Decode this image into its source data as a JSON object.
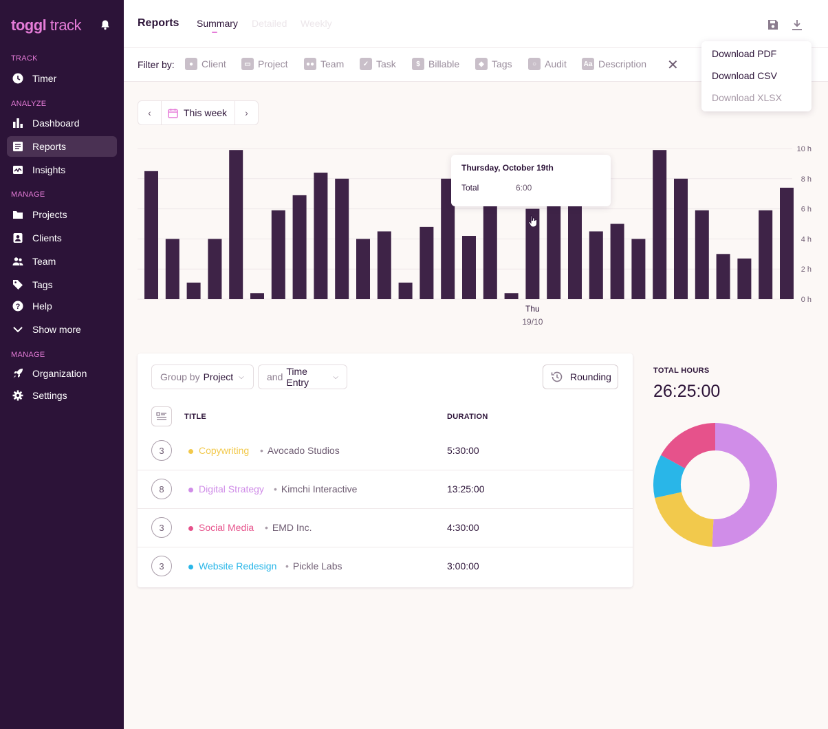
{
  "brand": {
    "logo_main": "toggl",
    "logo_sub": " track"
  },
  "sidebar": {
    "sections": [
      {
        "label": "TRACK"
      },
      {
        "label": "ANALYZE"
      },
      {
        "label": "MANAGE"
      },
      {
        "label": "MANAGE"
      }
    ],
    "items": [
      {
        "label": "Timer",
        "icon": "clock-icon"
      },
      {
        "label": "Dashboard",
        "icon": "bar-chart-icon"
      },
      {
        "label": "Reports",
        "icon": "report-icon",
        "active": true
      },
      {
        "label": "Insights",
        "icon": "insights-icon"
      },
      {
        "label": "Projects",
        "icon": "folder-icon"
      },
      {
        "label": "Clients",
        "icon": "client-icon"
      },
      {
        "label": "Team",
        "icon": "team-icon"
      },
      {
        "label": "Tags",
        "icon": "tag-icon"
      },
      {
        "label": "Help",
        "icon": "help-icon"
      },
      {
        "label": "Show more",
        "icon": "chevron-down-icon"
      },
      {
        "label": "Organization",
        "icon": "rocket-icon"
      },
      {
        "label": "Settings",
        "icon": "gear-icon"
      }
    ]
  },
  "header": {
    "title": "Reports",
    "tabs": [
      {
        "label": "Summary",
        "active": true
      },
      {
        "label": "Detailed"
      },
      {
        "label": "Weekly"
      }
    ]
  },
  "filters": {
    "label": "Filter by:",
    "items": [
      {
        "label": "Client",
        "icon": "client-icon"
      },
      {
        "label": "Project",
        "icon": "folder-icon"
      },
      {
        "label": "Team",
        "icon": "team-icon"
      },
      {
        "label": "Task",
        "icon": "check-icon"
      },
      {
        "label": "Billable",
        "icon": "dollar-icon"
      },
      {
        "label": "Tags",
        "icon": "tag-icon"
      },
      {
        "label": "Audit",
        "icon": "search-icon"
      },
      {
        "label": "Description",
        "icon": "text-icon"
      }
    ]
  },
  "download_menu": {
    "items": [
      {
        "label": "Download PDF",
        "disabled": false
      },
      {
        "label": "Download CSV",
        "disabled": false
      },
      {
        "label": "Download XLSX",
        "disabled": true
      }
    ]
  },
  "date_range": {
    "label": "This week"
  },
  "tooltip": {
    "title": "Thursday, October 19th",
    "label": "Total",
    "value": "6:00"
  },
  "chart_data": {
    "type": "bar",
    "y_ticks": [
      "0 h",
      "2 h",
      "4 h",
      "6 h",
      "8 h",
      "10 h"
    ],
    "ylim": [
      0,
      10
    ],
    "values": [
      8.5,
      4,
      1.1,
      4,
      9.9,
      0.4,
      5.9,
      6.9,
      8.4,
      8,
      4,
      4.5,
      1.1,
      4.8,
      8,
      4.2,
      7.8,
      0.4,
      6,
      7.5,
      7.5,
      4.5,
      5,
      4,
      9.9,
      8,
      5.9,
      3,
      2.7,
      5.9,
      7.4
    ],
    "highlighted_label": "Thu",
    "highlighted_sublabel": "19/10",
    "bar_color": "#3e2347"
  },
  "controls": {
    "group_by_prefix": "Group by",
    "group_by_value": "Project",
    "sub_prefix": "and",
    "sub_value": "Time Entry",
    "rounding": "Rounding"
  },
  "table": {
    "headers": {
      "title": "TITLE",
      "duration": "DURATION"
    },
    "rows": [
      {
        "count": "3",
        "project": "Copywriting",
        "client": "Avocado Studios",
        "duration": "5:30:00",
        "color": "#f2c94c"
      },
      {
        "count": "8",
        "project": "Digital Strategy",
        "client": "Kimchi Interactive",
        "duration": "13:25:00",
        "color": "#d08de8"
      },
      {
        "count": "3",
        "project": "Social Media",
        "client": "EMD Inc.",
        "duration": "4:30:00",
        "color": "#e6528b"
      },
      {
        "count": "3",
        "project": "Website Redesign",
        "client": "Pickle Labs",
        "duration": "3:00:00",
        "color": "#29b6e8"
      }
    ]
  },
  "totals": {
    "label": "TOTAL HOURS",
    "value": "26:25:00",
    "donut": [
      {
        "name": "Digital Strategy",
        "value": 13.42,
        "color": "#d08de8"
      },
      {
        "name": "Copywriting",
        "value": 5.5,
        "color": "#f2c94c"
      },
      {
        "name": "Website Redesign",
        "value": 3,
        "color": "#29b6e8"
      },
      {
        "name": "Social Media",
        "value": 4.5,
        "color": "#e6528b"
      }
    ]
  }
}
